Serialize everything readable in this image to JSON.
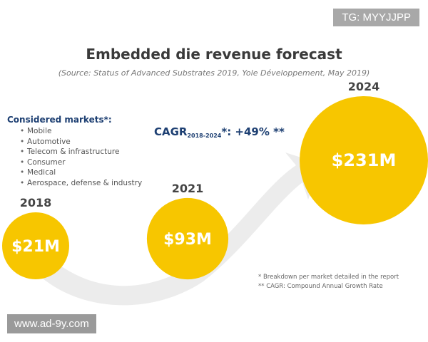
{
  "watermark_top": "TG: MYYJJPP",
  "watermark_bottom": "www.ad-9y.com",
  "chart_data": {
    "type": "bubble",
    "title": "Embedded die revenue forecast",
    "subtitle": "(Source: Status of Advanced Substrates 2019, Yole Développement, May 2019)",
    "categories": [
      "2018",
      "2021",
      "2024"
    ],
    "values": [
      21,
      93,
      231
    ],
    "value_labels": [
      "$21M",
      "$93M",
      "$231M"
    ],
    "unit": "$M",
    "cagr": {
      "prefix": "CAGR",
      "subscript": "2018-2024",
      "suffix": "*: +49% **"
    },
    "markets": {
      "heading": "Considered markets*:",
      "items": [
        "Mobile",
        "Automotive",
        "Telecom & infrastructure",
        "Consumer",
        "Medical",
        "Aerospace, defense & industry"
      ]
    },
    "notes": [
      "* Breakdown per market detailed in the report",
      "** CAGR: Compound Annual Growth Rate"
    ],
    "colors": {
      "bubble": "#f7c600",
      "arrow": "#ececec",
      "title": "#3a3a3a",
      "accent": "#1d3f72"
    }
  }
}
